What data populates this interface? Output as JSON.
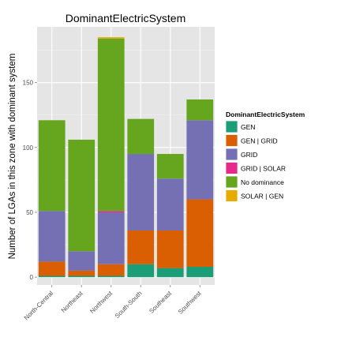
{
  "chart_data": {
    "type": "bar",
    "stacked": true,
    "title": "DominantElectricSystem",
    "xlabel": "",
    "ylabel": "Number of LGAs in this zone with dominant system",
    "categories": [
      "North-Central",
      "Northeast",
      "Northwest",
      "South-South",
      "Southeast",
      "Southwest"
    ],
    "ylim": [
      -6,
      193
    ],
    "yticks": [
      0,
      50,
      100,
      150
    ],
    "grid": true,
    "legend": {
      "title": "DominantElectricSystem",
      "placement": "right"
    },
    "series": [
      {
        "name": "GEN",
        "color": "#1b9e77",
        "values": [
          1,
          1,
          1,
          10,
          7,
          8
        ]
      },
      {
        "name": "GEN | GRID",
        "color": "#d95f02",
        "values": [
          11,
          4,
          9,
          26,
          29,
          52
        ]
      },
      {
        "name": "GRID",
        "color": "#7570b3",
        "values": [
          39,
          15,
          40,
          59,
          40,
          61
        ]
      },
      {
        "name": "GRID | SOLAR",
        "color": "#e7298a",
        "values": [
          0,
          0,
          1,
          0,
          0,
          0
        ]
      },
      {
        "name": "No dominance",
        "color": "#66a61e",
        "values": [
          70,
          86,
          133,
          27,
          19,
          16
        ]
      },
      {
        "name": "SOLAR | GEN",
        "color": "#e6ab02",
        "values": [
          0,
          0,
          1,
          0,
          0,
          0
        ]
      }
    ]
  }
}
